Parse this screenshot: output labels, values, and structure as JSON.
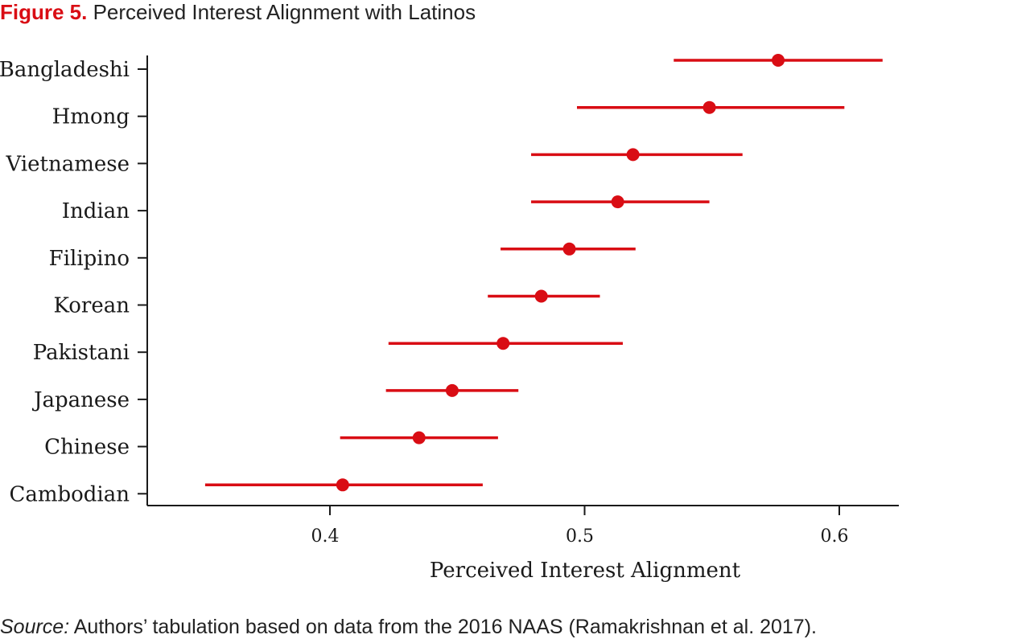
{
  "figure": {
    "label": "Figure 5.",
    "title": "Perceived Interest Alignment with Latinos",
    "source_label": "Source:",
    "source_text": " Authors’ tabulation based on data from the 2016 NAAS (Ramakrishnan et al. 2017)."
  },
  "colors": {
    "accent": "#d90d14",
    "axis": "#1a1a1a"
  },
  "chart_data": {
    "type": "scatter",
    "subtype": "dot-and-whisker",
    "xlabel": "Perceived Interest Alignment",
    "ylabel": "",
    "xlim": [
      0.33,
      0.62
    ],
    "xticks": [
      0.4,
      0.5,
      0.6
    ],
    "xtick_labels": [
      "0.4",
      "0.5",
      "0.6"
    ],
    "grid": false,
    "categories": [
      "Bangladeshi",
      "Hmong",
      "Vietnamese",
      "Indian",
      "Filipino",
      "Korean",
      "Pakistani",
      "Japanese",
      "Chinese",
      "Cambodian"
    ],
    "values": [
      0.576,
      0.549,
      0.519,
      0.513,
      0.494,
      0.483,
      0.468,
      0.448,
      0.435,
      0.405
    ],
    "ci_low": [
      0.535,
      0.497,
      0.479,
      0.479,
      0.467,
      0.462,
      0.423,
      0.422,
      0.404,
      0.351
    ],
    "ci_high": [
      0.617,
      0.602,
      0.562,
      0.549,
      0.52,
      0.506,
      0.515,
      0.474,
      0.466,
      0.46
    ]
  }
}
